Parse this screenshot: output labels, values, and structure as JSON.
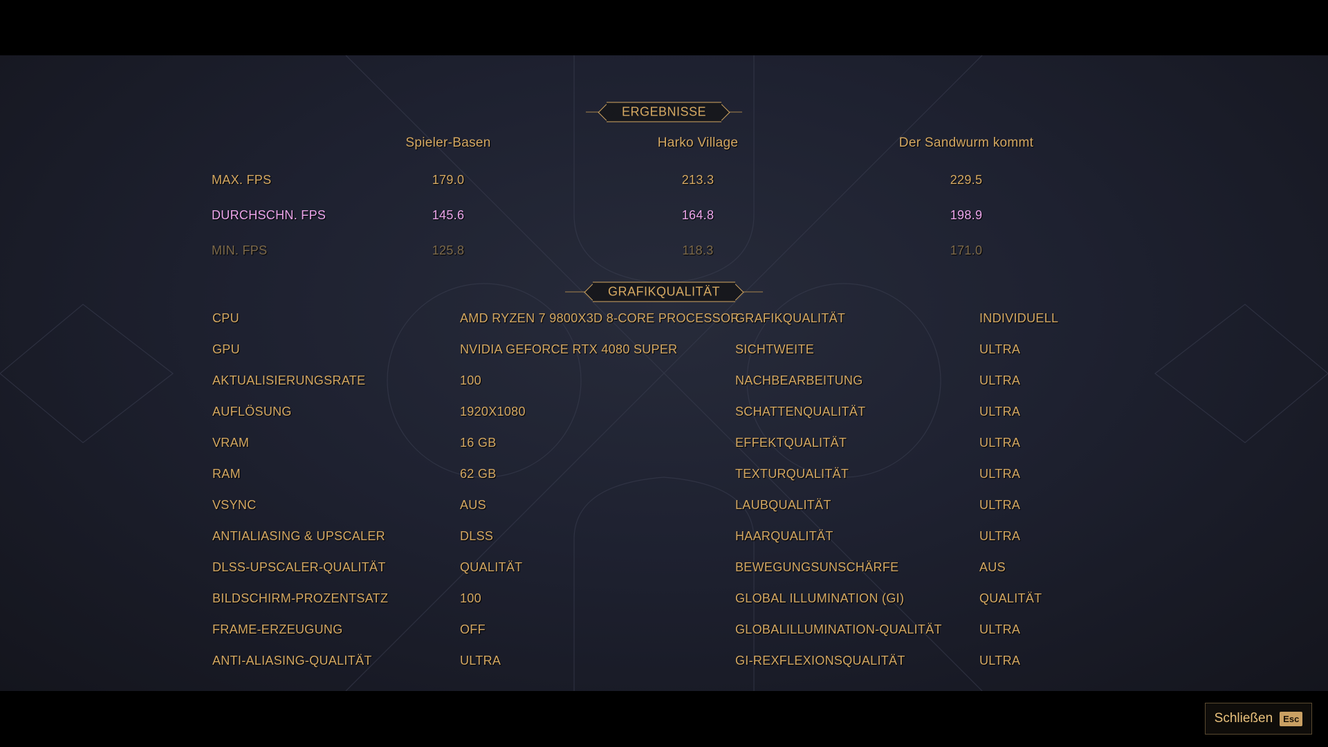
{
  "results": {
    "title": "ERGEBNISSE",
    "columns": [
      "Spieler-Basen",
      "Harko Village",
      "Der Sandwurm kommt"
    ],
    "rows": [
      {
        "label": "MAX. FPS",
        "values": [
          "179.0",
          "213.3",
          "229.5"
        ],
        "style": "normal"
      },
      {
        "label": "DURCHSCHN. FPS",
        "values": [
          "145.6",
          "164.8",
          "198.9"
        ],
        "style": "highlight"
      },
      {
        "label": "MIN. FPS",
        "values": [
          "125.8",
          "118.3",
          "171.0"
        ],
        "style": "dim"
      }
    ]
  },
  "graphics": {
    "title": "GRAFIKQUALITÄT",
    "left": [
      {
        "label": "CPU",
        "value": "AMD RYZEN 7 9800X3D 8-CORE PROCESSOR"
      },
      {
        "label": "GPU",
        "value": "NVIDIA GEFORCE RTX 4080 SUPER"
      },
      {
        "label": "AKTUALISIERUNGSRATE",
        "value": "100"
      },
      {
        "label": "AUFLÖSUNG",
        "value": "1920X1080"
      },
      {
        "label": "VRAM",
        "value": "16 GB"
      },
      {
        "label": "RAM",
        "value": "62 GB"
      },
      {
        "label": "VSYNC",
        "value": "AUS"
      },
      {
        "label": "ANTIALIASING & UPSCALER",
        "value": "DLSS"
      },
      {
        "label": "DLSS-UPSCALER-QUALITÄT",
        "value": "QUALITÄT"
      },
      {
        "label": "BILDSCHIRM-PROZENTSATZ",
        "value": "100"
      },
      {
        "label": "FRAME-ERZEUGUNG",
        "value": "OFF"
      },
      {
        "label": "ANTI-ALIASING-QUALITÄT",
        "value": "ULTRA"
      }
    ],
    "right": [
      {
        "label": "GRAFIKQUALITÄT",
        "value": "INDIVIDUELL"
      },
      {
        "label": "SICHTWEITE",
        "value": "ULTRA"
      },
      {
        "label": "NACHBEARBEITUNG",
        "value": "ULTRA"
      },
      {
        "label": "SCHATTENQUALITÄT",
        "value": "ULTRA"
      },
      {
        "label": "EFFEKTQUALITÄT",
        "value": "ULTRA"
      },
      {
        "label": "TEXTURQUALITÄT",
        "value": "ULTRA"
      },
      {
        "label": "LAUBQUALITÄT",
        "value": "ULTRA"
      },
      {
        "label": "HAARQUALITÄT",
        "value": "ULTRA"
      },
      {
        "label": "BEWEGUNGSUNSCHÄRFE",
        "value": "AUS"
      },
      {
        "label": "GLOBAL ILLUMINATION (GI)",
        "value": "QUALITÄT"
      },
      {
        "label": "GLOBALILLUMINATION-QUALITÄT",
        "value": "ULTRA"
      },
      {
        "label": "GI-REXFLEXIONSQUALITÄT",
        "value": "ULTRA"
      }
    ]
  },
  "footer": {
    "close_label": "Schließen",
    "close_key": "Esc"
  },
  "colors": {
    "gold": "#d4a862",
    "highlight": "#eba5ea",
    "dim": "#7d6a4b",
    "background": "#1e2130"
  }
}
